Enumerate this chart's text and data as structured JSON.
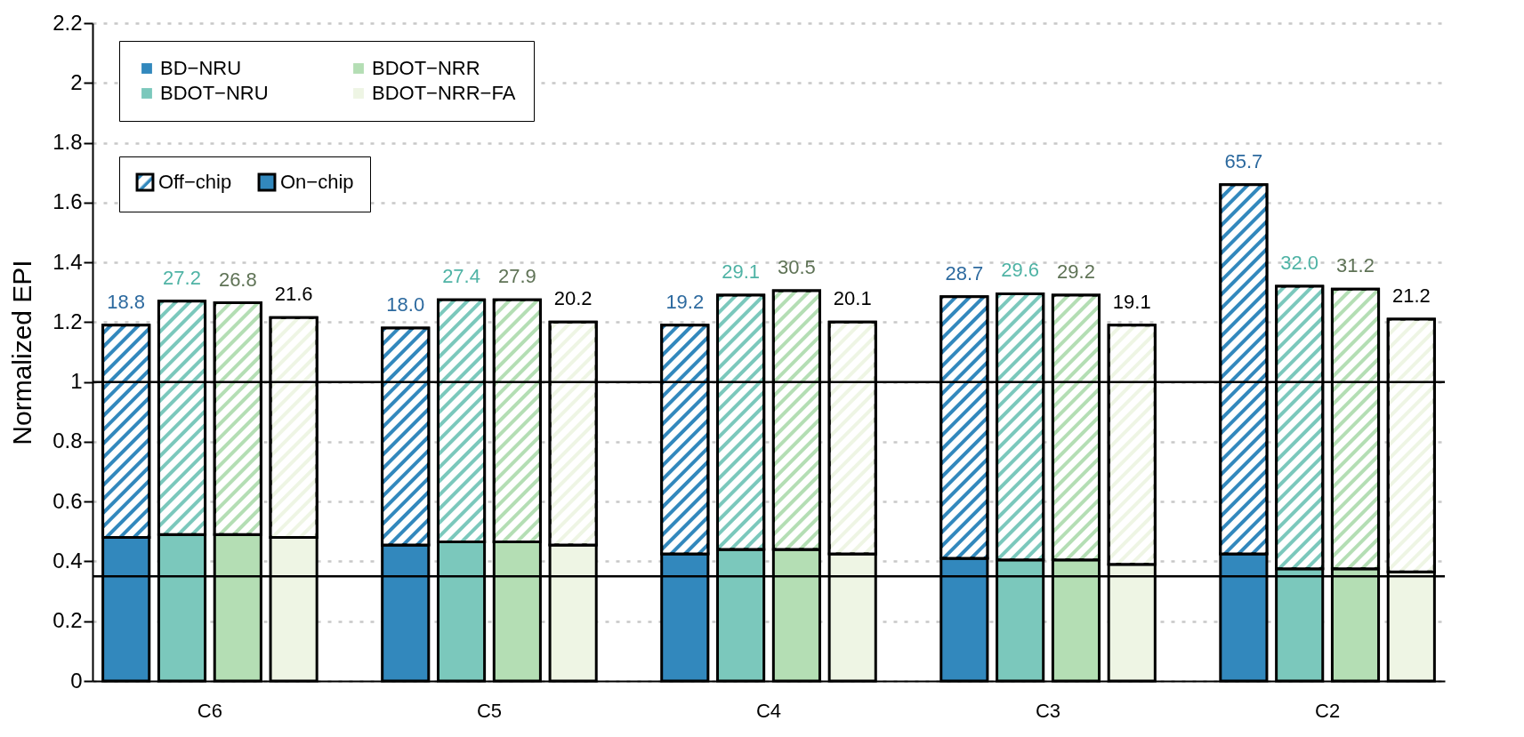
{
  "chart_data": {
    "type": "bar",
    "ylabel": "Normalized EPI",
    "categories": [
      null,
      null,
      null,
      null,
      null,
      null,
      null,
      null,
      null,
      null,
      null,
      null,
      null,
      null,
      null,
      null,
      null,
      null,
      null,
      null,
      null,
      null,
      null,
      null
    ],
    "stacked": true,
    "grid": "y",
    "legend": "top left",
    "ylim": [
      0,
      2.2
    ],
    "yticks": [
      0,
      0.2,
      0.4,
      0.6,
      0.8,
      1,
      1.2,
      1.4,
      1.6,
      1.8,
      2,
      2.2
    ],
    "annotations": [
      "Off−chip",
      "On−chip",
      "C6",
      "C5",
      "C4",
      "C3",
      "C2",
      "18.8",
      "27.2",
      "26.8",
      "21.6",
      "18.0",
      "27.4",
      "27.9",
      "20.2",
      "19.2",
      "29.1",
      "30.5",
      "20.1",
      "28.7",
      "29.6",
      "29.2",
      "19.1",
      "65.7",
      "32.0",
      "31.2",
      "21.2"
    ],
    "ref_lines": [
      {
        "axis": "y",
        "value": 1,
        "color": "#000000"
      },
      {
        "axis": "y",
        "value": 0.35,
        "color": "#000000"
      }
    ],
    "series": [
      {
        "name": "BD−NRU",
        "color": "#3288bd",
        "values": [
          0.48,
          null,
          null,
          null,
          null,
          0.455,
          null,
          null,
          null,
          null,
          0.425,
          null,
          null,
          null,
          null,
          0.41,
          null,
          null,
          null,
          null,
          0.425,
          null,
          null,
          null
        ]
      },
      {
        "name": "BDOT−NRU",
        "color": "#7bc8bc",
        "values": [
          null,
          0.49,
          null,
          null,
          null,
          null,
          0.465,
          null,
          null,
          null,
          null,
          0.44,
          null,
          null,
          null,
          null,
          0.405,
          null,
          null,
          null,
          null,
          0.375,
          null,
          null
        ]
      },
      {
        "name": "BDOT−NRR",
        "color": "#b4deb4",
        "values": [
          null,
          null,
          0.49,
          null,
          null,
          null,
          null,
          0.465,
          null,
          null,
          null,
          null,
          0.44,
          null,
          null,
          null,
          null,
          0.405,
          null,
          null,
          null,
          null,
          0.375,
          null
        ]
      },
      {
        "name": "BDOT−NRR−FA",
        "color": "#eef5e4",
        "values": [
          null,
          null,
          null,
          0.48,
          null,
          null,
          null,
          null,
          0.455,
          null,
          null,
          null,
          null,
          0.425,
          null,
          null,
          null,
          null,
          0.39,
          null,
          null,
          null,
          null,
          0.365
        ]
      },
      {
        "color": "#3288bd",
        "values": [
          0.71,
          null,
          null,
          null,
          null,
          0.725,
          null,
          null,
          null,
          null,
          0.765,
          null,
          null,
          null,
          null,
          0.875,
          null,
          null,
          null,
          null,
          1.235,
          null,
          null,
          null
        ]
      },
      {
        "color": "#7bc8bc",
        "values": [
          null,
          0.78,
          null,
          null,
          null,
          null,
          0.81,
          null,
          null,
          null,
          null,
          0.85,
          null,
          null,
          null,
          null,
          0.89,
          null,
          null,
          null,
          null,
          0.945,
          null,
          null
        ]
      },
      {
        "color": "#b4deb4",
        "values": [
          null,
          null,
          0.775,
          null,
          null,
          null,
          null,
          0.81,
          null,
          null,
          null,
          null,
          0.865,
          null,
          null,
          null,
          null,
          0.885,
          null,
          null,
          null,
          null,
          0.935,
          null
        ]
      },
      {
        "color": "#eef5e4",
        "values": [
          null,
          null,
          null,
          0.735,
          null,
          null,
          null,
          null,
          0.745,
          null,
          null,
          null,
          null,
          0.775,
          null,
          null,
          null,
          null,
          0.8,
          null,
          null,
          null,
          null,
          0.845
        ]
      }
    ]
  }
}
